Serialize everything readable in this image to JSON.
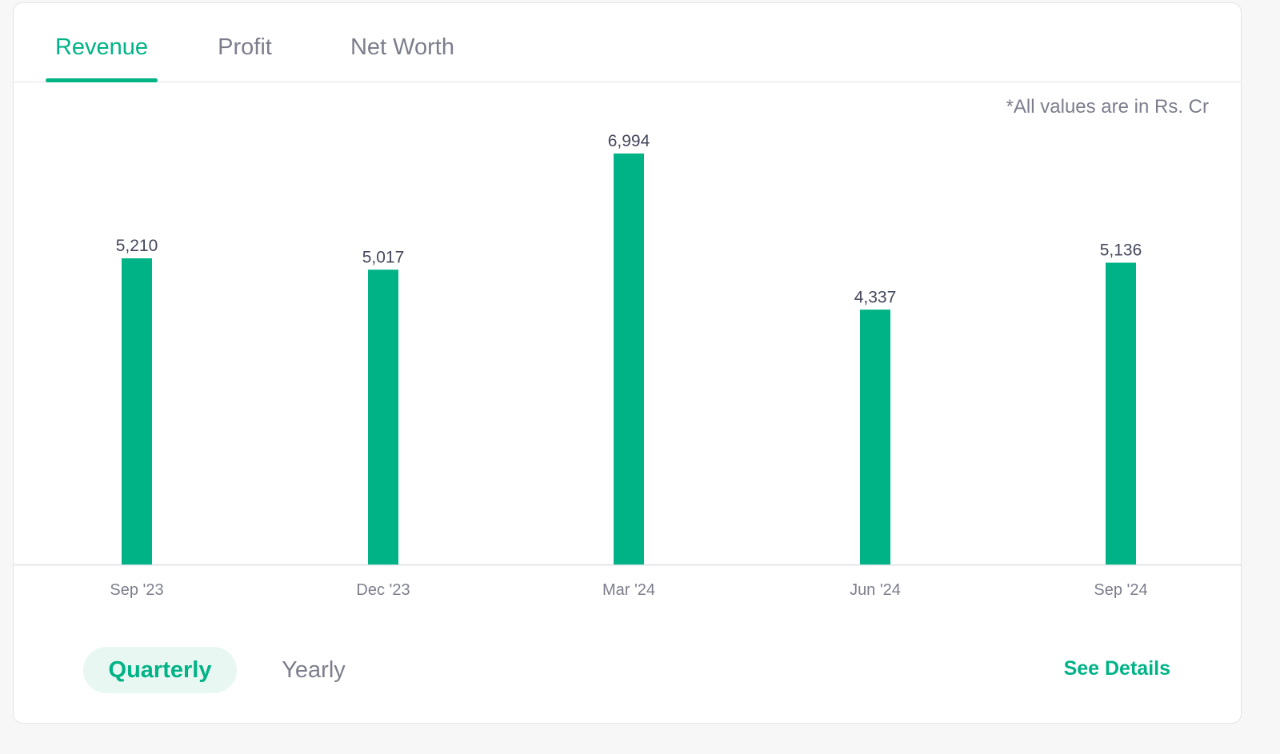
{
  "tabs": [
    {
      "label": "Revenue",
      "active": true
    },
    {
      "label": "Profit",
      "active": false
    },
    {
      "label": "Net Worth",
      "active": false
    }
  ],
  "note": "*All values are in Rs. Cr",
  "chart_data": {
    "type": "bar",
    "categories": [
      "Sep '23",
      "Dec '23",
      "Mar '24",
      "Jun '24",
      "Sep '24"
    ],
    "values": [
      5210,
      5017,
      6994,
      4337,
      5136
    ],
    "value_labels": [
      "5,210",
      "5,017",
      "6,994",
      "4,337",
      "5,136"
    ],
    "ylim": [
      0,
      6994
    ],
    "grid": false,
    "bar_color": "#00b386"
  },
  "period_toggle": {
    "options": [
      {
        "label": "Quarterly",
        "active": true
      },
      {
        "label": "Yearly",
        "active": false
      }
    ]
  },
  "see_details_label": "See Details",
  "colors": {
    "accent": "#00b386",
    "muted_text": "#7c7e8c",
    "value_text": "#44475b"
  }
}
